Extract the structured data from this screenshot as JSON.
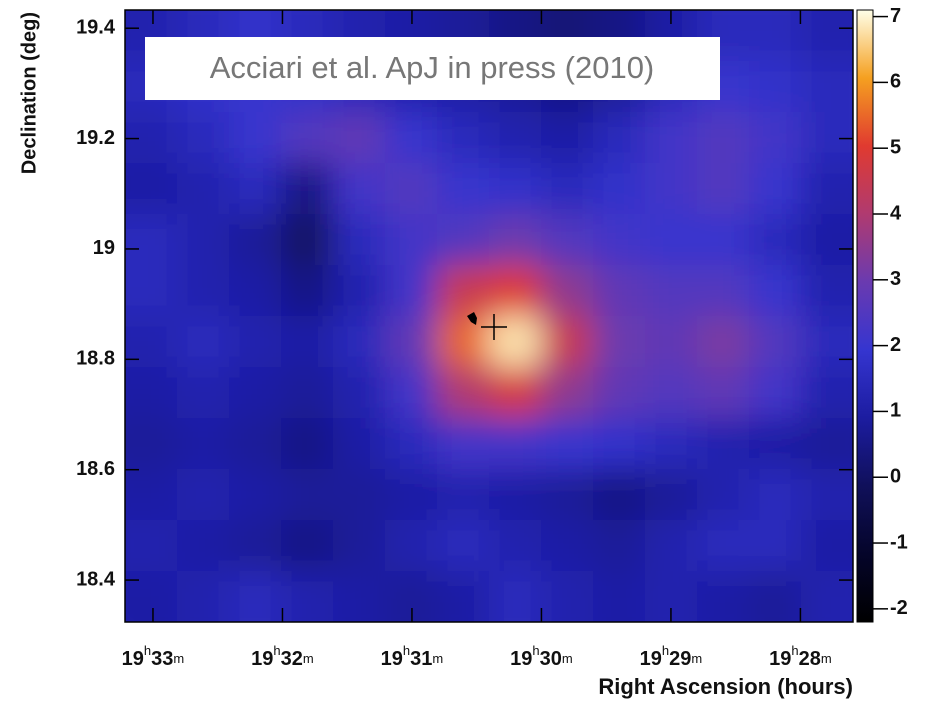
{
  "chart_data": {
    "type": "heatmap",
    "annotation": "Acciari et al. ApJ in press (2010)",
    "x_label": "Right Ascension (hours)",
    "y_label": "Declination (deg)",
    "xlim": [
      19.5536,
      19.4599
    ],
    "ylim": [
      18.324,
      19.433
    ],
    "xticks": [
      {
        "value": 19.55,
        "label": "19h33m"
      },
      {
        "value": 19.533333,
        "label": "19h32m"
      },
      {
        "value": 19.516667,
        "label": "19h31m"
      },
      {
        "value": 19.5,
        "label": "19h30m"
      },
      {
        "value": 19.483333,
        "label": "19h29m"
      },
      {
        "value": 19.466667,
        "label": "19h28m"
      }
    ],
    "yticks": [
      18.4,
      18.6,
      18.8,
      19,
      19.2,
      19.4
    ],
    "zlim": [
      -2.2,
      7.1
    ],
    "zticks": [
      -2,
      -1,
      0,
      1,
      2,
      3,
      4,
      5,
      6,
      7
    ],
    "colorscale": [
      "#000000",
      "#05052a",
      "#10105a",
      "#1c1ca0",
      "#3535d0",
      "#6a3ab0",
      "#b03a70",
      "#e03a30",
      "#f5a020",
      "#ffffe8"
    ],
    "z": [
      [
        1.2,
        1.5,
        1.8,
        1.5,
        1.2,
        1.0,
        0.8,
        0.5,
        0.3,
        0.5,
        1.0,
        1.5,
        1.5,
        1.2
      ],
      [
        1.5,
        1.8,
        2.0,
        1.8,
        1.5,
        1.2,
        1.0,
        0.8,
        0.5,
        0.8,
        1.5,
        2.0,
        1.8,
        1.5
      ],
      [
        1.2,
        1.5,
        2.0,
        2.5,
        2.8,
        2.0,
        1.5,
        1.2,
        1.0,
        1.5,
        2.2,
        2.5,
        2.2,
        1.5
      ],
      [
        1.0,
        1.2,
        1.5,
        0.5,
        2.2,
        2.5,
        2.0,
        1.8,
        1.5,
        1.8,
        2.2,
        2.5,
        2.0,
        1.2
      ],
      [
        1.5,
        1.2,
        0.8,
        0.0,
        1.5,
        2.2,
        2.5,
        3.0,
        2.5,
        2.2,
        2.0,
        2.0,
        1.5,
        1.0
      ],
      [
        1.5,
        1.2,
        1.0,
        0.5,
        1.2,
        2.2,
        4.5,
        5.0,
        3.5,
        2.8,
        2.5,
        2.5,
        2.0,
        1.2
      ],
      [
        1.2,
        1.5,
        1.2,
        1.0,
        1.5,
        2.8,
        5.5,
        6.8,
        4.5,
        3.0,
        2.8,
        3.2,
        2.5,
        1.5
      ],
      [
        1.0,
        1.2,
        1.0,
        0.8,
        1.2,
        2.2,
        4.0,
        4.8,
        3.5,
        2.8,
        2.5,
        2.8,
        2.2,
        1.2
      ],
      [
        0.8,
        1.0,
        0.8,
        0.5,
        1.0,
        1.5,
        2.2,
        2.2,
        2.0,
        1.8,
        1.5,
        1.2,
        1.0,
        0.8
      ],
      [
        1.0,
        1.2,
        1.0,
        0.8,
        0.8,
        1.0,
        1.2,
        1.0,
        0.8,
        0.5,
        0.8,
        1.2,
        1.5,
        1.2
      ],
      [
        1.2,
        1.0,
        0.8,
        0.5,
        0.8,
        1.2,
        1.5,
        1.2,
        1.0,
        0.8,
        1.2,
        1.5,
        1.5,
        1.0
      ],
      [
        1.0,
        1.2,
        1.5,
        1.2,
        1.0,
        0.8,
        1.0,
        1.5,
        1.2,
        1.0,
        1.2,
        1.0,
        0.8,
        1.2
      ]
    ]
  }
}
